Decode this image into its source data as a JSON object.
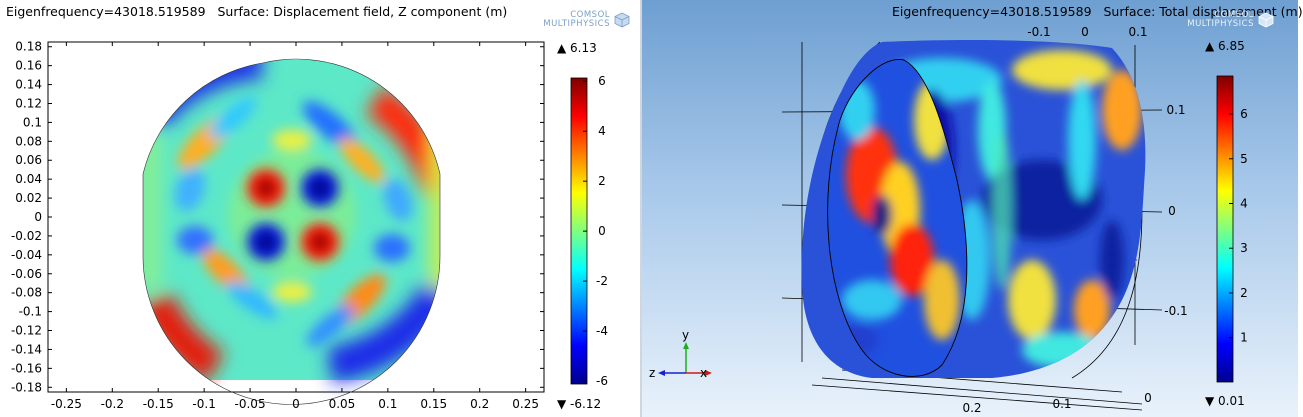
{
  "left": {
    "title": "Eigenfrequency=43018.519589   Surface: Displacement field, Z component (m)",
    "logo": [
      "COMSOL",
      "MULTIPHYSICS"
    ],
    "chart_data": {
      "type": "heatmap",
      "x_ticks": [
        "-0.25",
        "-0.2",
        "-0.15",
        "-0.1",
        "-0.05",
        "0",
        "0.05",
        "0.1",
        "0.15",
        "0.2",
        "0.25"
      ],
      "y_ticks": [
        "0.18",
        "0.16",
        "0.14",
        "0.12",
        "0.1",
        "0.08",
        "0.06",
        "0.04",
        "0.02",
        "0",
        "-0.02",
        "-0.04",
        "-0.06",
        "-0.08",
        "-0.1",
        "-0.12",
        "-0.14",
        "-0.16",
        "-0.18"
      ],
      "xlim": [
        -0.27,
        0.27
      ],
      "ylim": [
        -0.185,
        0.185
      ],
      "colorbar": {
        "max_label": "▲ 6.13",
        "min_label": "▼ -6.12",
        "ticks": [
          "6",
          "4",
          "2",
          "0",
          "-2",
          "-4",
          "-6"
        ],
        "range": [
          -6.12,
          6.13
        ]
      }
    }
  },
  "right": {
    "title": "Eigenfrequency=43018.519589   Surface: Total displacement (m)",
    "logo": [
      "COMSOL",
      "MULTIPHYSICS"
    ],
    "chart_data": {
      "type": "heatmap",
      "axis_top_ticks": [
        "-0.1",
        "0",
        "0.1"
      ],
      "axis_side_ticks": [
        "0.1",
        "0",
        "-0.1"
      ],
      "axis_bottom_ticks": [
        "0.2",
        "0.1",
        "0"
      ],
      "triad": {
        "y": "y",
        "z": "z",
        "x": "x"
      },
      "colorbar": {
        "max_label": "▲ 6.85",
        "min_label": "▼ 0.01",
        "ticks": [
          "6",
          "5",
          "4",
          "3",
          "2",
          "1"
        ],
        "range": [
          0.01,
          6.85
        ]
      }
    }
  }
}
